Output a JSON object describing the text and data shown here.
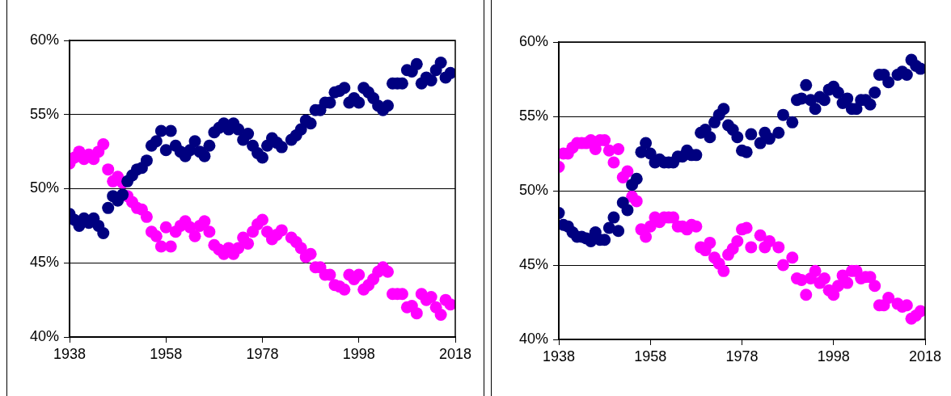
{
  "chart_data": [
    {
      "type": "scatter",
      "marker": "circle",
      "grid": "y",
      "legend": false,
      "xlim": [
        1938,
        2018
      ],
      "xticks": [
        1938,
        1958,
        1978,
        1998,
        2018
      ],
      "ylim": [
        40,
        60
      ],
      "yticks": [
        {
          "value": 40,
          "label": "40%"
        },
        {
          "value": 45,
          "label": "45%"
        },
        {
          "value": 50,
          "label": "50%"
        },
        {
          "value": 55,
          "label": "55%"
        },
        {
          "value": 60,
          "label": "60%"
        }
      ],
      "series": [
        {
          "color": "#000080",
          "x": [
            1938,
            1939,
            1940,
            1941,
            1942,
            1943,
            1944,
            1945,
            1946,
            1947,
            1948,
            1949,
            1950,
            1951,
            1952,
            1953,
            1954,
            1955,
            1956,
            1957,
            1958,
            1959,
            1960,
            1961,
            1962,
            1963,
            1964,
            1965,
            1966,
            1967,
            1968,
            1969,
            1970,
            1971,
            1972,
            1973,
            1974,
            1975,
            1976,
            1977,
            1978,
            1979,
            1980,
            1981,
            1982,
            1984,
            1985,
            1986,
            1987,
            1988,
            1989,
            1990,
            1991,
            1992,
            1993,
            1994,
            1995,
            1996,
            1997,
            1998,
            1999,
            2000,
            2001,
            2002,
            2003,
            2004,
            2005,
            2006,
            2007,
            2008,
            2009,
            2010,
            2011,
            2012,
            2013,
            2014,
            2015,
            2016,
            2017
          ],
          "values": [
            48.3,
            47.9,
            47.5,
            48.0,
            47.7,
            48.0,
            47.5,
            47.0,
            48.7,
            49.5,
            49.2,
            49.6,
            50.5,
            50.9,
            51.3,
            51.4,
            51.9,
            52.9,
            53.2,
            53.9,
            52.6,
            53.9,
            52.9,
            52.5,
            52.2,
            52.6,
            53.2,
            52.5,
            52.2,
            52.9,
            53.8,
            54.1,
            54.4,
            54.0,
            54.4,
            54.0,
            53.3,
            53.7,
            52.9,
            52.4,
            52.1,
            52.9,
            53.4,
            53.1,
            52.8,
            53.3,
            53.6,
            54.0,
            54.6,
            54.4,
            55.3,
            55.3,
            55.8,
            55.8,
            56.5,
            56.6,
            56.8,
            55.8,
            56.1,
            55.8,
            56.8,
            56.5,
            56.1,
            55.6,
            55.3,
            55.6,
            57.1,
            57.1,
            57.1,
            58.0,
            57.9,
            58.4,
            57.1,
            57.5,
            57.3,
            58.0,
            58.5,
            57.5,
            57.8
          ]
        },
        {
          "color": "#ff00ff",
          "x": [
            1938,
            1939,
            1940,
            1941,
            1942,
            1943,
            1944,
            1945,
            1946,
            1947,
            1948,
            1949,
            1950,
            1951,
            1952,
            1953,
            1954,
            1955,
            1956,
            1957,
            1958,
            1959,
            1960,
            1961,
            1962,
            1963,
            1964,
            1965,
            1966,
            1967,
            1968,
            1969,
            1970,
            1971,
            1972,
            1973,
            1974,
            1975,
            1976,
            1977,
            1978,
            1979,
            1980,
            1981,
            1982,
            1984,
            1985,
            1986,
            1987,
            1988,
            1989,
            1990,
            1991,
            1992,
            1993,
            1994,
            1995,
            1996,
            1997,
            1998,
            1999,
            2000,
            2001,
            2002,
            2003,
            2004,
            2005,
            2006,
            2007,
            2008,
            2009,
            2010,
            2011,
            2012,
            2013,
            2014,
            2015,
            2016,
            2017
          ],
          "values": [
            51.7,
            52.1,
            52.5,
            52.0,
            52.3,
            52.0,
            52.5,
            53.0,
            51.3,
            50.5,
            50.8,
            50.4,
            49.5,
            49.1,
            48.7,
            48.6,
            48.1,
            47.1,
            46.8,
            46.1,
            47.4,
            46.1,
            47.1,
            47.5,
            47.8,
            47.4,
            46.8,
            47.5,
            47.8,
            47.1,
            46.2,
            45.9,
            45.6,
            46.0,
            45.6,
            46.0,
            46.7,
            46.3,
            47.1,
            47.6,
            47.9,
            47.1,
            46.6,
            46.9,
            47.2,
            46.7,
            46.4,
            46.0,
            45.4,
            45.6,
            44.7,
            44.7,
            44.2,
            44.2,
            43.5,
            43.4,
            43.2,
            44.2,
            43.9,
            44.2,
            43.2,
            43.5,
            43.9,
            44.4,
            44.7,
            44.4,
            42.9,
            42.9,
            42.9,
            42.0,
            42.1,
            41.6,
            42.9,
            42.5,
            42.7,
            42.0,
            41.5,
            42.5,
            42.2
          ]
        }
      ]
    },
    {
      "type": "scatter",
      "marker": "circle",
      "grid": "y",
      "legend": false,
      "xlim": [
        1938,
        2018
      ],
      "xticks": [
        1938,
        1958,
        1978,
        1998,
        2018
      ],
      "ylim": [
        40,
        60
      ],
      "yticks": [
        {
          "value": 40,
          "label": "40%"
        },
        {
          "value": 45,
          "label": "45%"
        },
        {
          "value": 50,
          "label": "50%"
        },
        {
          "value": 55,
          "label": "55%"
        },
        {
          "value": 60,
          "label": "60%"
        }
      ],
      "series": [
        {
          "color": "#000080",
          "x": [
            1938,
            1939,
            1940,
            1941,
            1942,
            1943,
            1944,
            1945,
            1946,
            1947,
            1948,
            1949,
            1950,
            1951,
            1952,
            1953,
            1954,
            1955,
            1956,
            1957,
            1958,
            1959,
            1960,
            1961,
            1962,
            1963,
            1964,
            1965,
            1966,
            1967,
            1968,
            1969,
            1970,
            1971,
            1972,
            1973,
            1974,
            1975,
            1976,
            1977,
            1978,
            1979,
            1980,
            1982,
            1983,
            1984,
            1986,
            1987,
            1989,
            1990,
            1991,
            1992,
            1993,
            1994,
            1995,
            1996,
            1997,
            1998,
            1999,
            2000,
            2001,
            2002,
            2003,
            2004,
            2005,
            2006,
            2007,
            2008,
            2009,
            2010,
            2012,
            2013,
            2014,
            2015,
            2016,
            2017
          ],
          "values": [
            48.5,
            47.7,
            47.6,
            47.2,
            46.9,
            46.9,
            46.8,
            46.6,
            47.2,
            46.7,
            46.7,
            47.5,
            48.2,
            47.3,
            49.2,
            48.7,
            50.4,
            50.8,
            52.6,
            53.2,
            52.5,
            51.9,
            52.1,
            51.9,
            51.9,
            51.9,
            52.3,
            52.3,
            52.7,
            52.4,
            52.4,
            53.9,
            54.1,
            53.6,
            54.6,
            55.1,
            55.5,
            54.4,
            54.1,
            53.6,
            52.7,
            52.6,
            53.8,
            53.2,
            53.9,
            53.5,
            53.9,
            55.1,
            54.6,
            56.1,
            56.2,
            57.1,
            56.1,
            55.5,
            56.3,
            56.1,
            56.8,
            57.0,
            56.6,
            55.9,
            56.2,
            55.5,
            55.5,
            56.1,
            56.1,
            55.8,
            56.6,
            57.8,
            57.8,
            57.3,
            57.8,
            58.0,
            57.8,
            58.8,
            58.4,
            58.2
          ]
        },
        {
          "color": "#ff00ff",
          "x": [
            1938,
            1939,
            1940,
            1941,
            1942,
            1943,
            1944,
            1945,
            1946,
            1947,
            1948,
            1949,
            1950,
            1951,
            1952,
            1953,
            1954,
            1955,
            1956,
            1957,
            1958,
            1959,
            1960,
            1961,
            1962,
            1963,
            1964,
            1965,
            1966,
            1967,
            1968,
            1969,
            1970,
            1971,
            1972,
            1973,
            1974,
            1975,
            1976,
            1977,
            1978,
            1979,
            1980,
            1982,
            1983,
            1984,
            1986,
            1987,
            1989,
            1990,
            1991,
            1992,
            1993,
            1994,
            1995,
            1996,
            1997,
            1998,
            1999,
            2000,
            2001,
            2002,
            2003,
            2004,
            2005,
            2006,
            2007,
            2008,
            2009,
            2010,
            2012,
            2013,
            2014,
            2015,
            2016,
            2017
          ],
          "values": [
            51.6,
            52.5,
            52.5,
            52.9,
            53.2,
            53.2,
            53.2,
            53.4,
            52.8,
            53.4,
            53.4,
            52.7,
            51.9,
            52.8,
            50.9,
            51.3,
            49.6,
            49.3,
            47.4,
            46.9,
            47.6,
            48.2,
            47.9,
            48.2,
            48.2,
            48.2,
            47.6,
            47.6,
            47.4,
            47.7,
            47.6,
            46.2,
            46.0,
            46.5,
            45.5,
            45.1,
            44.6,
            45.7,
            46.1,
            46.6,
            47.4,
            47.5,
            46.2,
            47.0,
            46.2,
            46.6,
            46.2,
            45.0,
            45.5,
            44.1,
            44.0,
            43.0,
            44.1,
            44.6,
            43.8,
            44.1,
            43.3,
            43.0,
            43.6,
            44.3,
            43.8,
            44.6,
            44.6,
            44.1,
            44.2,
            44.2,
            43.6,
            42.3,
            42.3,
            42.8,
            42.4,
            42.2,
            42.3,
            41.4,
            41.6,
            41.9
          ]
        }
      ]
    }
  ]
}
